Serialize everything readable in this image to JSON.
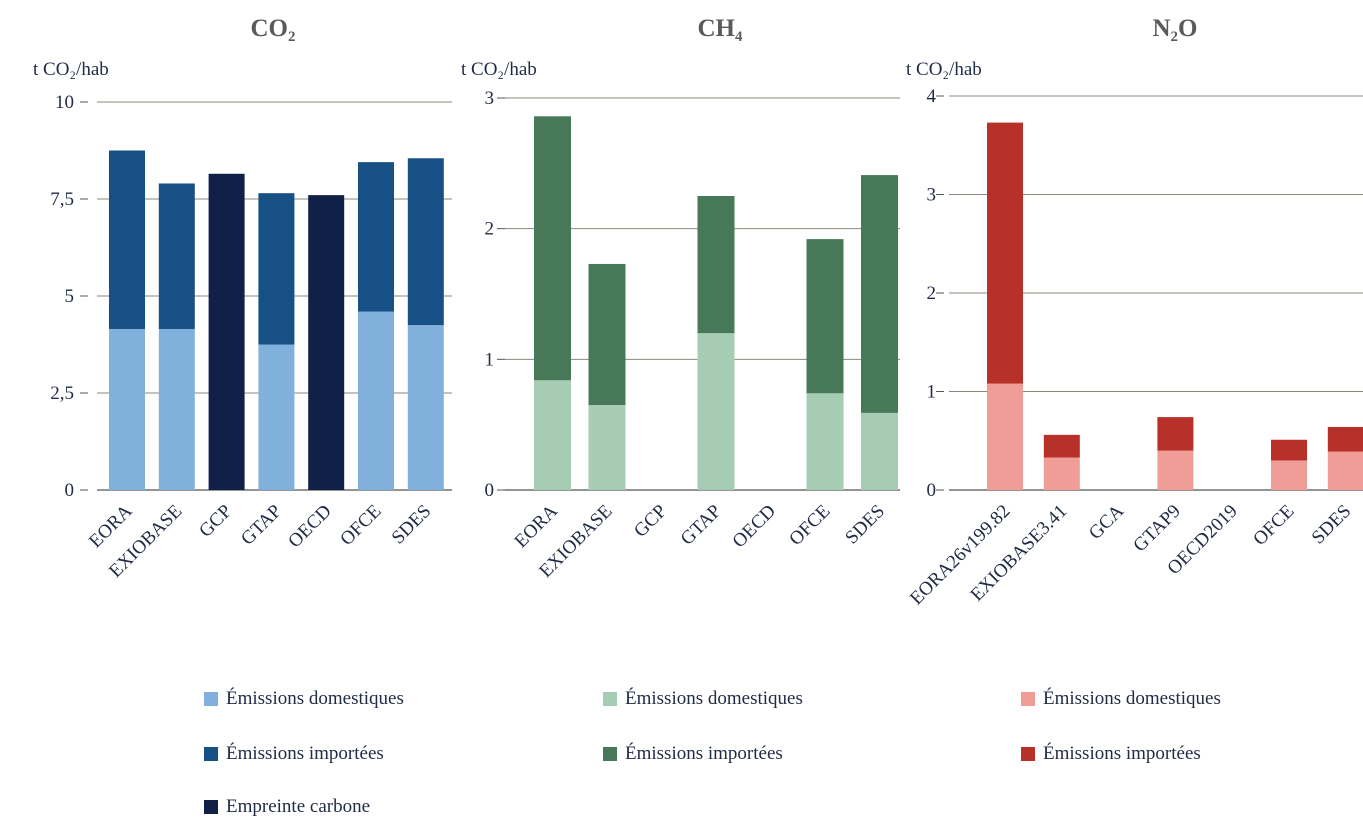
{
  "chart_data": [
    {
      "type": "bar",
      "stacked": true,
      "title": "CO",
      "title_sub": "2",
      "ylabel": "t CO₂/hab",
      "ylim": [
        0,
        10
      ],
      "yticks": [
        0,
        2.5,
        5,
        7.5,
        10
      ],
      "ytick_labels": [
        "0",
        "2,5",
        "5",
        "7,5",
        "10"
      ],
      "categories": [
        "EORA",
        "EXIOBASE",
        "GCP",
        "GTAP",
        "OECD",
        "OFCE",
        "SDES"
      ],
      "series": [
        {
          "name": "Émissions domestiques",
          "color": "#82b0dc",
          "values": [
            4.15,
            4.15,
            0,
            3.75,
            0,
            4.6,
            4.25
          ]
        },
        {
          "name": "Émissions importées",
          "color": "#175085",
          "values": [
            4.6,
            3.75,
            0,
            3.9,
            0,
            3.85,
            4.3
          ]
        },
        {
          "name": "Empreinte carbone",
          "color": "#112047",
          "values": [
            0,
            0,
            8.15,
            0,
            7.6,
            0,
            0
          ]
        }
      ]
    },
    {
      "type": "bar",
      "stacked": true,
      "title": "CH",
      "title_sub": "4",
      "ylabel": "t CO₂/hab",
      "ylim": [
        0,
        3
      ],
      "yticks": [
        0,
        1,
        2,
        3
      ],
      "ytick_labels": [
        "0",
        "1",
        "2",
        "3"
      ],
      "categories": [
        "EORA",
        "EXIOBASE",
        "GCP",
        "GTAP",
        "OECD",
        "OFCE",
        "SDES"
      ],
      "series": [
        {
          "name": "Émissions domestiques",
          "color": "#a6cdb4",
          "values": [
            0.84,
            0.65,
            0,
            1.2,
            0,
            0.74,
            0.59
          ]
        },
        {
          "name": "Émissions importées",
          "color": "#477858",
          "values": [
            2.02,
            1.08,
            0,
            1.05,
            0,
            1.18,
            1.82
          ]
        }
      ]
    },
    {
      "type": "bar",
      "stacked": true,
      "title": "N",
      "title_sub": "2",
      "title_tail": "O",
      "ylabel": "t CO₂/hab",
      "ylim": [
        0,
        4
      ],
      "yticks": [
        0,
        1,
        2,
        3,
        4
      ],
      "ytick_labels": [
        "0",
        "1",
        "2",
        "3",
        "4"
      ],
      "categories": [
        "EORA26v199.82",
        "EXIOBASE3.41",
        "GCA",
        "GTAP9",
        "OECD2019",
        "OFCE",
        "SDES"
      ],
      "series": [
        {
          "name": "Émissions domestiques",
          "color": "#f09d97",
          "values": [
            1.08,
            0.33,
            0,
            0.4,
            0,
            0.3,
            0.39
          ]
        },
        {
          "name": "Émissions importées",
          "color": "#b7302a",
          "values": [
            2.65,
            0.23,
            0,
            0.34,
            0,
            0.21,
            0.25
          ]
        }
      ]
    }
  ]
}
